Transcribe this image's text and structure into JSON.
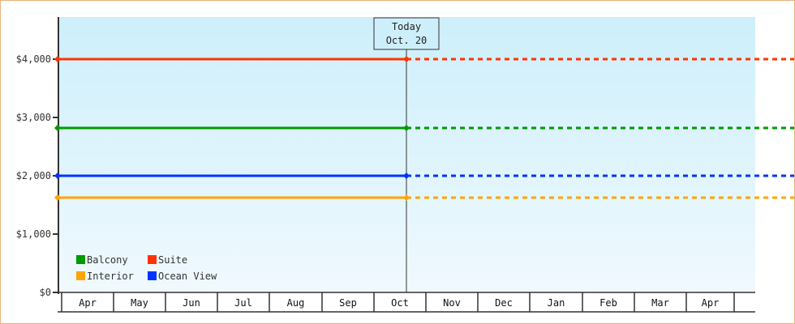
{
  "chart_data": {
    "type": "line",
    "title": "",
    "xlabel": "",
    "ylabel": "",
    "categories": [
      "Apr",
      "May",
      "Jun",
      "Jul",
      "Aug",
      "Sep",
      "Oct",
      "Nov",
      "Dec",
      "Jan",
      "Feb",
      "Mar",
      "Apr"
    ],
    "yticks": [
      "$0",
      "$1,000",
      "$2,000",
      "$3,000",
      "$4,000"
    ],
    "ytick_values": [
      0,
      1000,
      2000,
      3000,
      4000
    ],
    "ylim": [
      0,
      4700
    ],
    "today_label": [
      "Today",
      "Oct. 20"
    ],
    "grid": false,
    "legend_position": "bottom-left",
    "series": [
      {
        "name": "Balcony",
        "color": "#009900",
        "value": 2820
      },
      {
        "name": "Suite",
        "color": "#ff3300",
        "value": 4000
      },
      {
        "name": "Interior",
        "color": "#ffa500",
        "value": 1625
      },
      {
        "name": "Ocean View",
        "color": "#0033ff",
        "value": 2000
      }
    ],
    "note": "Solid line up to today, dashed after"
  }
}
